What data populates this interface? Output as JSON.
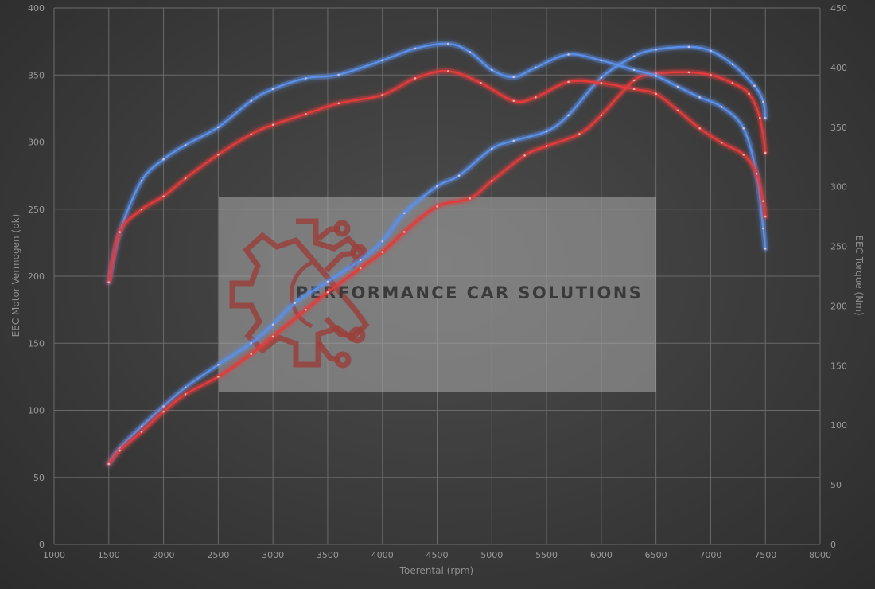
{
  "chart_data": {
    "type": "line",
    "xlabel": "Toerental (rpm)",
    "ylabel_left": "EEC Motor Vermogen (pk)",
    "ylabel_right": "EEC Torque (Nm)",
    "xlim": [
      1000,
      8000
    ],
    "ylim_left": [
      0,
      400
    ],
    "ylim_right": [
      0,
      450
    ],
    "xticks": [
      1000,
      1500,
      2000,
      2500,
      3000,
      3500,
      4000,
      4500,
      5000,
      5500,
      6000,
      6500,
      7000,
      7500,
      8000
    ],
    "yticks_left": [
      0,
      50,
      100,
      150,
      200,
      250,
      300,
      350,
      400
    ],
    "yticks_right": [
      0,
      50,
      100,
      150,
      200,
      250,
      300,
      350,
      400,
      450
    ],
    "grid": true,
    "series": [
      {
        "axis": "left",
        "color": "#5b8fe8",
        "points": [
          [
            1500,
            60
          ],
          [
            1600,
            72
          ],
          [
            1800,
            88
          ],
          [
            2000,
            103
          ],
          [
            2200,
            117
          ],
          [
            2500,
            134
          ],
          [
            2800,
            150
          ],
          [
            3000,
            164
          ],
          [
            3200,
            180
          ],
          [
            3500,
            196
          ],
          [
            3800,
            212
          ],
          [
            4000,
            226
          ],
          [
            4200,
            247
          ],
          [
            4500,
            267
          ],
          [
            4700,
            275
          ],
          [
            5000,
            295
          ],
          [
            5200,
            301
          ],
          [
            5500,
            308
          ],
          [
            5700,
            320
          ],
          [
            6000,
            348
          ],
          [
            6300,
            364
          ],
          [
            6500,
            369
          ],
          [
            6800,
            371
          ],
          [
            7000,
            368
          ],
          [
            7200,
            358
          ],
          [
            7400,
            342
          ],
          [
            7480,
            330
          ],
          [
            7500,
            318
          ]
        ]
      },
      {
        "axis": "left",
        "color": "#e23b3b",
        "points": [
          [
            1500,
            60
          ],
          [
            1600,
            70
          ],
          [
            1800,
            84
          ],
          [
            2000,
            99
          ],
          [
            2200,
            112
          ],
          [
            2500,
            125
          ],
          [
            2800,
            142
          ],
          [
            3000,
            155
          ],
          [
            3300,
            175
          ],
          [
            3500,
            188
          ],
          [
            3800,
            206
          ],
          [
            4000,
            218
          ],
          [
            4200,
            233
          ],
          [
            4500,
            252
          ],
          [
            4800,
            258
          ],
          [
            5000,
            271
          ],
          [
            5300,
            290
          ],
          [
            5500,
            297
          ],
          [
            5800,
            306
          ],
          [
            6000,
            320
          ],
          [
            6300,
            346
          ],
          [
            6500,
            351
          ],
          [
            6800,
            352
          ],
          [
            7000,
            350
          ],
          [
            7200,
            344
          ],
          [
            7350,
            336
          ],
          [
            7450,
            318
          ],
          [
            7500,
            292
          ]
        ]
      },
      {
        "axis": "right",
        "color": "#5b8fe8",
        "points": [
          [
            1500,
            220
          ],
          [
            1600,
            262
          ],
          [
            1800,
            305
          ],
          [
            2000,
            323
          ],
          [
            2200,
            335
          ],
          [
            2500,
            350
          ],
          [
            2800,
            372
          ],
          [
            3000,
            382
          ],
          [
            3300,
            391
          ],
          [
            3600,
            394
          ],
          [
            4000,
            406
          ],
          [
            4300,
            416
          ],
          [
            4600,
            420
          ],
          [
            4800,
            413
          ],
          [
            5000,
            398
          ],
          [
            5200,
            392
          ],
          [
            5400,
            400
          ],
          [
            5700,
            411
          ],
          [
            6000,
            406
          ],
          [
            6300,
            398
          ],
          [
            6500,
            393
          ],
          [
            6700,
            384
          ],
          [
            6900,
            375
          ],
          [
            7100,
            367
          ],
          [
            7300,
            349
          ],
          [
            7420,
            310
          ],
          [
            7480,
            265
          ],
          [
            7500,
            248
          ]
        ]
      },
      {
        "axis": "right",
        "color": "#e23b3b",
        "points": [
          [
            1500,
            220
          ],
          [
            1600,
            262
          ],
          [
            1800,
            281
          ],
          [
            2000,
            292
          ],
          [
            2200,
            307
          ],
          [
            2500,
            327
          ],
          [
            2800,
            344
          ],
          [
            3000,
            352
          ],
          [
            3300,
            361
          ],
          [
            3600,
            370
          ],
          [
            4000,
            377
          ],
          [
            4300,
            391
          ],
          [
            4600,
            397
          ],
          [
            4900,
            387
          ],
          [
            5200,
            372
          ],
          [
            5400,
            375
          ],
          [
            5700,
            388
          ],
          [
            6000,
            387
          ],
          [
            6300,
            382
          ],
          [
            6500,
            378
          ],
          [
            6700,
            364
          ],
          [
            6900,
            349
          ],
          [
            7100,
            337
          ],
          [
            7300,
            327
          ],
          [
            7420,
            311
          ],
          [
            7480,
            288
          ],
          [
            7500,
            275
          ]
        ]
      }
    ]
  },
  "brand": {
    "name": "PERFORMANCE CAR SOLUTIONS"
  }
}
